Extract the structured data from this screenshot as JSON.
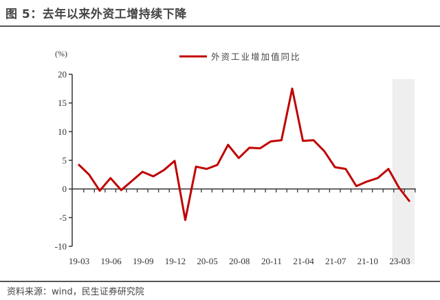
{
  "header": {
    "title": "图 5：去年以来外资工增持续下降"
  },
  "footer": {
    "source": "资料来源：wind，民生证券研究院"
  },
  "colors": {
    "series": "#C00000",
    "shade": "#EFEFEF",
    "axis": "#333333"
  },
  "chart_data": {
    "type": "line",
    "title": "去年以来外资工增持续下降",
    "xlabel": "",
    "ylabel": "(%)",
    "ylim": [
      -10,
      20
    ],
    "yticks": [
      20,
      15,
      10,
      5,
      0,
      -5,
      -10
    ],
    "grid": false,
    "legend_position": "top",
    "x_tick_labels": [
      "19-03",
      "19-06",
      "19-09",
      "19-12",
      "20-05",
      "20-08",
      "20-11",
      "21-04",
      "21-07",
      "21-10",
      "23-03"
    ],
    "x_tick_label_indices": [
      0,
      3,
      6,
      9,
      12,
      15,
      18,
      21,
      24,
      27,
      30
    ],
    "shaded_region": {
      "from_index": 29.5,
      "to_index": 31.2
    },
    "series": [
      {
        "name": "外资工业增加值同比",
        "values": [
          4.3,
          2.5,
          -0.3,
          1.9,
          -0.2,
          1.4,
          3.0,
          2.2,
          3.3,
          4.9,
          -5.4,
          3.9,
          3.5,
          4.2,
          7.7,
          5.4,
          7.2,
          7.1,
          8.3,
          8.5,
          17.5,
          8.4,
          8.5,
          6.6,
          3.8,
          3.5,
          0.5,
          1.3,
          1.9,
          3.5,
          0.2,
          -2.2
        ]
      }
    ]
  }
}
